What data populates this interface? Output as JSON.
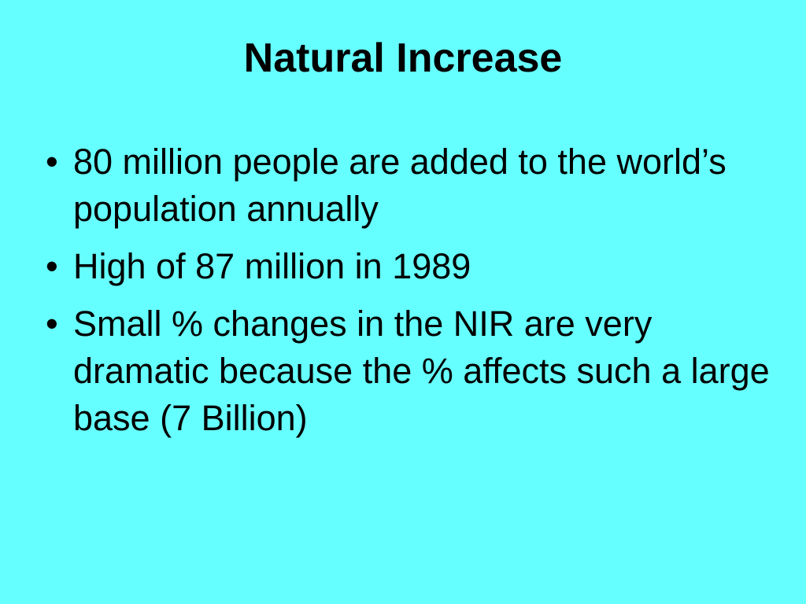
{
  "slide": {
    "title": "Natural Increase",
    "bullet_glyph": "•",
    "bullets": [
      {
        "text": "80 million people are added to the world’s population annually"
      },
      {
        "text": "High of 87 million in 1989"
      },
      {
        "text": "Small % changes in the NIR are very dramatic because the % affects such a large base (7 Billion)"
      }
    ]
  },
  "colors": {
    "background": "#66FFFF",
    "text": "#000000"
  }
}
